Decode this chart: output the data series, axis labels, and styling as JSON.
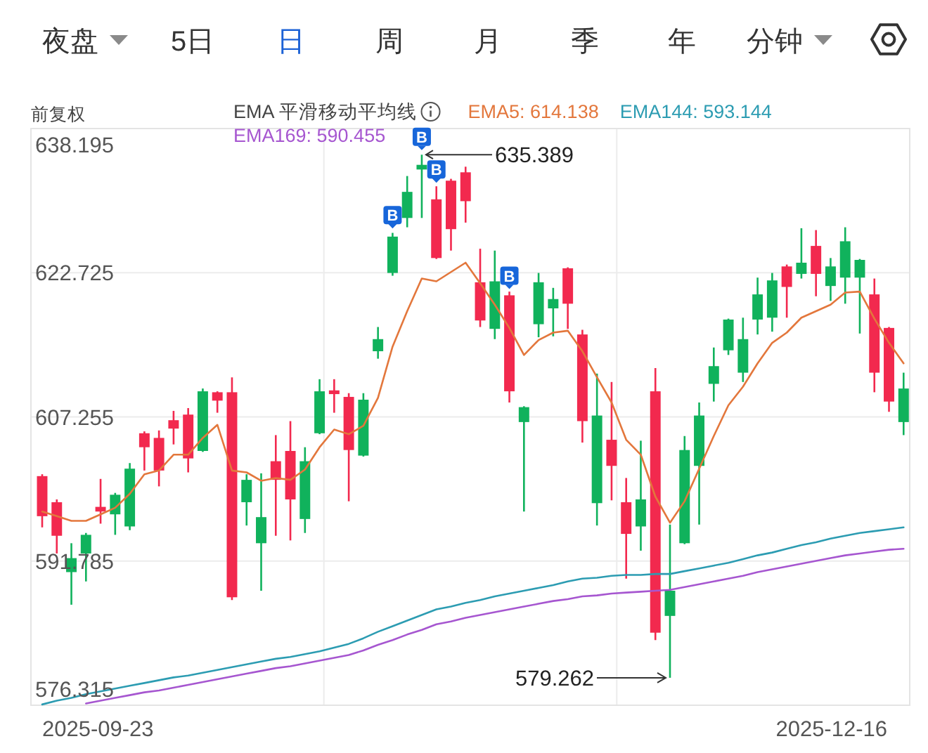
{
  "chart_data": [
    {
      "type": "other",
      "annotations": [
        "夜盘",
        "5日",
        "日",
        "周",
        "月",
        "季",
        "年",
        "分钟"
      ]
    },
    {
      "type": "candlestick",
      "ylabel": "前复权",
      "legend_title": "EMA 平滑移动平均线",
      "legend": "top",
      "grid": true,
      "ylim": [
        576.315,
        638.195
      ],
      "yticks": [
        576.315,
        591.785,
        607.255,
        622.725,
        638.195
      ],
      "categories": [
        null,
        null,
        null,
        null,
        null,
        null,
        null,
        null,
        null,
        null,
        null,
        null,
        null,
        null,
        null,
        null,
        null,
        null,
        null,
        null,
        null,
        null,
        null,
        null,
        null,
        null,
        null,
        null,
        null,
        null,
        null,
        null,
        null,
        null,
        null,
        null,
        null,
        null,
        null,
        null,
        null,
        null,
        null,
        null,
        null,
        null,
        null,
        null,
        null,
        null,
        null,
        null,
        null,
        null,
        null,
        null,
        null,
        null,
        null,
        null
      ],
      "ohlc": [
        [
          600.9,
          601.1,
          595.4,
          596.6
        ],
        [
          598.1,
          598.4,
          592.6,
          594.5
        ],
        [
          590.6,
          593.7,
          587.1,
          592.1
        ],
        [
          592.6,
          594.8,
          589.6,
          594.6
        ],
        [
          597.6,
          600.6,
          595.8,
          597.1
        ],
        [
          596.8,
          599.1,
          594.6,
          598.9
        ],
        [
          595.5,
          602.3,
          595.1,
          601.7
        ],
        [
          605.5,
          605.7,
          601.5,
          604.0
        ],
        [
          605.0,
          605.8,
          599.8,
          601.5
        ],
        [
          606.9,
          607.9,
          604.3,
          606.0
        ],
        [
          607.5,
          608.2,
          601.3,
          602.8
        ],
        [
          603.6,
          610.3,
          603.5,
          610.0
        ],
        [
          609.9,
          610.0,
          607.7,
          609.0
        ],
        [
          609.9,
          611.5,
          587.6,
          587.9
        ],
        [
          598.1,
          601.1,
          595.6,
          600.5
        ],
        [
          593.7,
          601.2,
          588.6,
          596.5
        ],
        [
          602.5,
          605.3,
          594.5,
          600.5
        ],
        [
          603.6,
          606.8,
          594.0,
          598.4
        ],
        [
          596.3,
          604.0,
          594.8,
          602.5
        ],
        [
          605.5,
          611.3,
          605.4,
          610.0
        ],
        [
          610.1,
          611.3,
          607.7,
          609.7
        ],
        [
          609.4,
          609.8,
          598.2,
          603.7
        ],
        [
          603.1,
          609.8,
          603.0,
          609.1
        ],
        [
          614.3,
          616.9,
          613.5,
          615.6
        ],
        [
          622.7,
          627.0,
          622.4,
          626.6
        ],
        [
          628.6,
          633.1,
          627.6,
          631.4
        ],
        [
          633.8,
          635.389,
          628.6,
          634.3
        ],
        [
          630.6,
          632.0,
          624.2,
          624.3
        ],
        [
          632.6,
          632.8,
          625.1,
          627.4
        ],
        [
          633.5,
          634.1,
          628.1,
          630.4
        ],
        [
          621.7,
          625.3,
          616.9,
          617.6
        ],
        [
          616.7,
          625.1,
          615.6,
          621.8
        ],
        [
          620.3,
          620.7,
          608.8,
          610.0
        ],
        [
          606.7,
          608.4,
          597.1,
          608.3
        ],
        [
          617.2,
          622.7,
          615.8,
          621.7
        ],
        [
          618.9,
          621.1,
          615.9,
          619.9
        ],
        [
          623.2,
          623.3,
          616.7,
          619.4
        ],
        [
          616.1,
          616.6,
          604.5,
          606.8
        ],
        [
          598.0,
          611.9,
          595.6,
          607.4
        ],
        [
          604.8,
          611.0,
          598.3,
          602.0
        ],
        [
          598.1,
          600.7,
          589.9,
          594.7
        ],
        [
          595.5,
          604.7,
          592.9,
          598.4
        ],
        [
          610.0,
          612.5,
          583.3,
          584.1
        ],
        [
          585.9,
          595.7,
          579.262,
          588.6
        ],
        [
          593.7,
          605.2,
          593.6,
          603.7
        ],
        [
          602.0,
          608.8,
          595.7,
          607.4
        ],
        [
          610.8,
          614.7,
          608.9,
          612.7
        ],
        [
          614.4,
          617.8,
          613.9,
          617.7
        ],
        [
          612.0,
          617.9,
          611.0,
          615.6
        ],
        [
          617.7,
          622.2,
          616.1,
          620.4
        ],
        [
          617.9,
          622.7,
          616.4,
          621.9
        ],
        [
          623.4,
          623.6,
          617.9,
          621.2
        ],
        [
          622.6,
          627.5,
          622.1,
          623.8
        ],
        [
          625.6,
          627.3,
          620.2,
          622.6
        ],
        [
          621.3,
          624.3,
          619.7,
          623.4
        ],
        [
          622.2,
          627.6,
          619.4,
          626.1
        ],
        [
          622.2,
          624.2,
          616.2,
          624.1
        ],
        [
          620.4,
          622.1,
          609.9,
          612.0
        ],
        [
          616.8,
          616.9,
          607.8,
          608.9
        ],
        [
          606.7,
          612.0,
          605.3,
          610.3
        ]
      ],
      "colors": [
        "#f2294e",
        "#f2294e",
        "#10b25c",
        "#10b25c",
        "#f2294e",
        "#10b25c",
        "#10b25c",
        "#f2294e",
        "#f2294e",
        "#f2294e",
        "#f2294e",
        "#10b25c",
        "#f2294e",
        "#f2294e",
        "#10b25c",
        "#10b25c",
        "#f2294e",
        "#f2294e",
        "#10b25c",
        "#10b25c",
        "#f2294e",
        "#f2294e",
        "#10b25c",
        "#10b25c",
        "#10b25c",
        "#10b25c",
        "#10b25c",
        "#f2294e",
        "#f2294e",
        "#f2294e",
        "#f2294e",
        "#10b25c",
        "#f2294e",
        "#10b25c",
        "#10b25c",
        "#10b25c",
        "#f2294e",
        "#f2294e",
        "#10b25c",
        "#f2294e",
        "#f2294e",
        "#10b25c",
        "#f2294e",
        "#10b25c",
        "#10b25c",
        "#10b25c",
        "#10b25c",
        "#10b25c",
        "#10b25c",
        "#10b25c",
        "#10b25c",
        "#f2294e",
        "#10b25c",
        "#f2294e",
        "#10b25c",
        "#10b25c",
        "#10b25c",
        "#f2294e",
        "#f2294e",
        "#10b25c"
      ],
      "series": [
        {
          "type": "line",
          "name": "EMA5: 614.138",
          "color": "#e3773c",
          "values": [
            597.1,
            596.6,
            596.1,
            596.1,
            596.8,
            597.5,
            599.0,
            601.1,
            601.5,
            603.2,
            603.2,
            605.0,
            606.4,
            601.5,
            601.3,
            600.4,
            600.7,
            600.5,
            601.6,
            604.0,
            605.9,
            605.4,
            606.3,
            609.3,
            614.8,
            618.6,
            622.1,
            621.8,
            622.8,
            623.8,
            621.6,
            619.3,
            616.8,
            613.9,
            615.5,
            616.3,
            616.5,
            614.3,
            611.5,
            608.8,
            604.8,
            603.2,
            598.7,
            595.9,
            598.2,
            601.7,
            605.2,
            608.5,
            610.5,
            613.0,
            615.2,
            616.3,
            617.9,
            618.6,
            619.3,
            620.6,
            620.7,
            617.8,
            615.2,
            613.0
          ]
        },
        {
          "type": "line",
          "name": "EMA144: 593.144",
          "color": "#2c9cb2",
          "values": [
            576.4,
            576.8,
            577.1,
            577.5,
            577.8,
            578.1,
            578.4,
            578.7,
            579.0,
            579.3,
            579.5,
            579.8,
            580.1,
            580.4,
            580.7,
            581.0,
            581.3,
            581.5,
            581.8,
            582.1,
            582.5,
            582.9,
            583.5,
            584.2,
            584.8,
            585.4,
            586.0,
            586.6,
            586.9,
            587.3,
            587.6,
            588.0,
            588.3,
            588.6,
            588.9,
            589.2,
            589.6,
            589.9,
            590.0,
            590.2,
            590.3,
            590.3,
            590.4,
            590.4,
            590.7,
            591.0,
            591.3,
            591.6,
            592.0,
            592.4,
            592.7,
            593.1,
            593.5,
            593.8,
            594.2,
            594.5,
            594.8,
            595.0,
            595.2,
            595.4
          ]
        },
        {
          "type": "line",
          "name": "EMA169: 590.455",
          "color": "#a656d0",
          "values": [
            null,
            null,
            null,
            576.5,
            576.8,
            577.1,
            577.4,
            577.7,
            577.9,
            578.2,
            578.5,
            578.8,
            579.1,
            579.4,
            579.7,
            580.0,
            580.3,
            580.5,
            580.8,
            581.1,
            581.4,
            581.7,
            582.2,
            582.8,
            583.3,
            583.9,
            584.4,
            585.0,
            585.3,
            585.7,
            586.0,
            586.3,
            586.6,
            586.9,
            587.2,
            587.5,
            587.7,
            588.0,
            588.1,
            588.3,
            588.4,
            588.5,
            588.6,
            588.7,
            589.0,
            589.3,
            589.6,
            589.9,
            590.2,
            590.6,
            590.9,
            591.2,
            591.5,
            591.8,
            592.1,
            592.4,
            592.6,
            592.8,
            593.0,
            593.1
          ]
        },
        {
          "type": "scatter",
          "color": "#1766da",
          "marker": "square",
          "values": [
            null,
            null,
            null,
            null,
            null,
            null,
            null,
            null,
            null,
            null,
            null,
            null,
            null,
            null,
            null,
            null,
            null,
            null,
            null,
            null,
            null,
            null,
            null,
            null,
            628.9,
            null,
            637.3,
            633.8,
            null,
            null,
            null,
            null,
            622.4,
            null,
            null,
            null,
            null,
            null,
            null,
            null,
            null,
            null,
            null,
            null,
            null,
            null,
            null,
            null,
            null,
            null,
            null,
            null,
            null,
            null,
            null,
            null,
            null,
            null,
            null,
            null
          ],
          "value_labels": [
            null,
            null,
            null,
            null,
            null,
            null,
            null,
            null,
            null,
            null,
            null,
            null,
            null,
            null,
            null,
            null,
            null,
            null,
            null,
            null,
            null,
            null,
            null,
            null,
            "B",
            null,
            "B",
            "B",
            null,
            null,
            null,
            null,
            "B",
            null,
            null,
            null,
            null,
            null,
            null,
            null,
            null,
            null,
            null,
            null,
            null,
            null,
            null,
            null,
            null,
            null,
            null,
            null,
            null,
            null,
            null,
            null,
            null,
            null,
            null,
            null
          ]
        }
      ],
      "annotations": [
        "2025-09-23",
        "2025-12-16",
        "635.389",
        "579.262"
      ]
    }
  ]
}
